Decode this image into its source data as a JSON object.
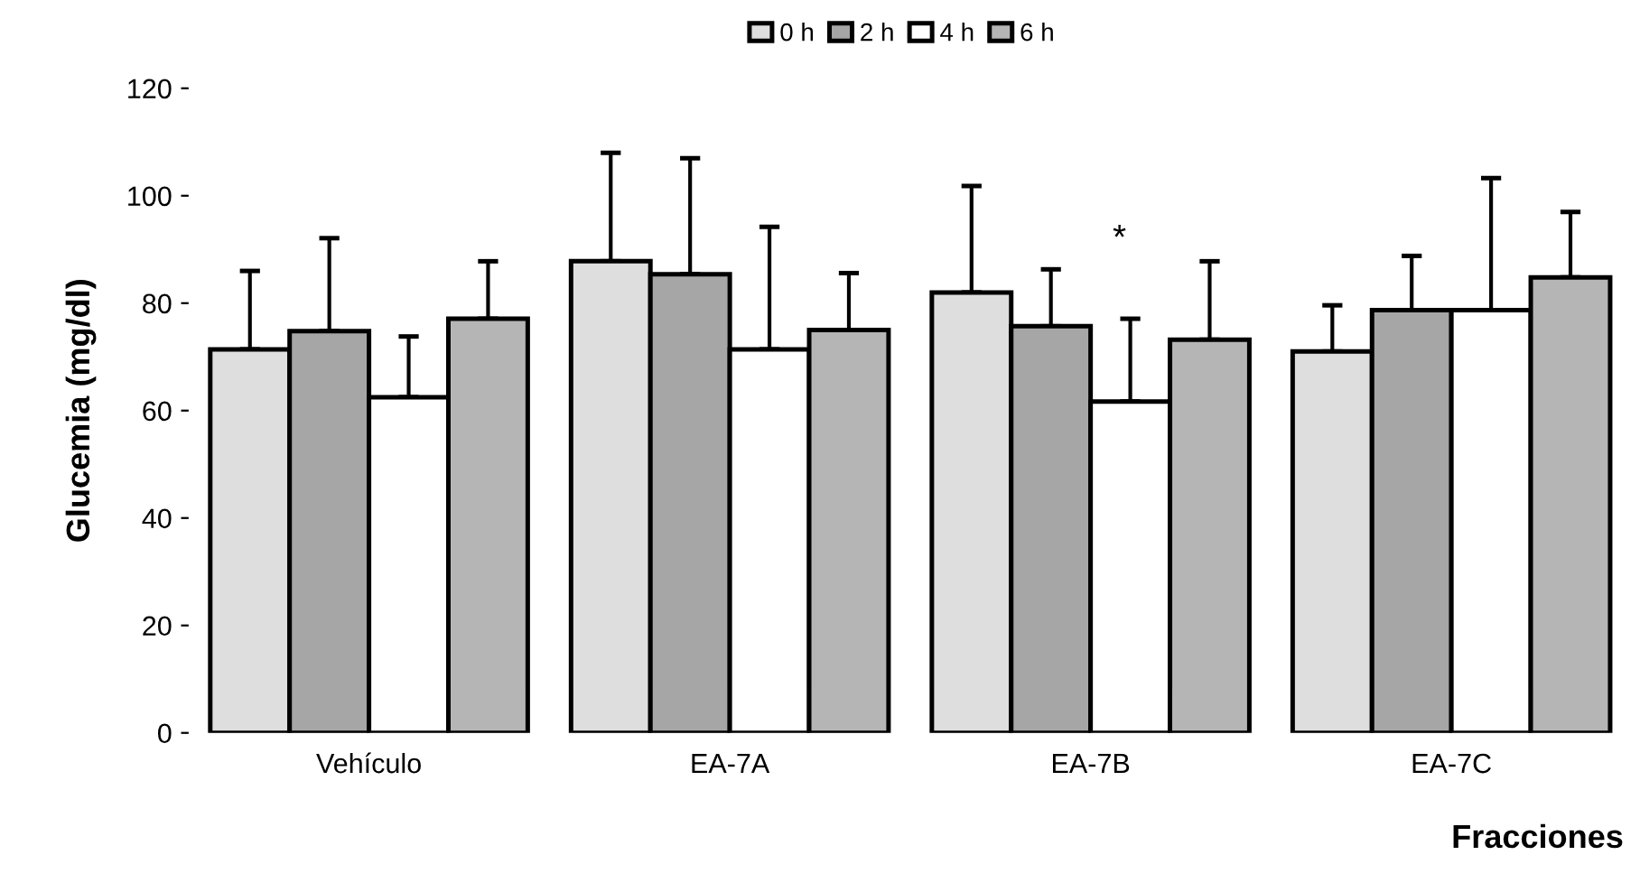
{
  "chart_data": {
    "type": "bar",
    "ylabel": "Glucemia (mg/dl)",
    "xlabel": "Fracciones",
    "categories": [
      "Vehículo",
      "EA-7A",
      "EA-7B",
      "EA-7C"
    ],
    "series": [
      {
        "name": "0 h",
        "color": "#dedede",
        "values": [
          71.4,
          87.8,
          82,
          71
        ],
        "errors": [
          [
            71.4,
            86
          ],
          [
            87.8,
            108
          ],
          [
            82,
            101.8
          ],
          [
            71,
            79.6
          ]
        ]
      },
      {
        "name": "2 h",
        "color": "#a6a6a6",
        "values": [
          74.8,
          85.4,
          75.7,
          78.7
        ],
        "errors": [
          [
            74.8,
            92.1
          ],
          [
            85.4,
            107
          ],
          [
            75.7,
            86.3
          ],
          [
            78.7,
            88.8
          ]
        ]
      },
      {
        "name": "4 h",
        "color": "#ffffff",
        "values": [
          62.5,
          71.4,
          61.7,
          78.7
        ],
        "errors": [
          [
            62.5,
            73.8
          ],
          [
            71.4,
            94.2
          ],
          [
            61.7,
            77.1
          ],
          [
            78.7,
            103.3
          ]
        ]
      },
      {
        "name": "6 h",
        "color": "#b5b5b5",
        "values": [
          77.1,
          75,
          73.2,
          84.8
        ],
        "errors": [
          [
            77.1,
            87.8
          ],
          [
            75,
            85.6
          ],
          [
            73.2,
            87.8
          ],
          [
            84.8,
            97
          ]
        ]
      }
    ],
    "ylim": [
      0,
      120
    ],
    "yticks": [
      0,
      20,
      40,
      60,
      80,
      100,
      120
    ],
    "grid": false,
    "legend": "top",
    "annotations": [
      "*"
    ]
  }
}
